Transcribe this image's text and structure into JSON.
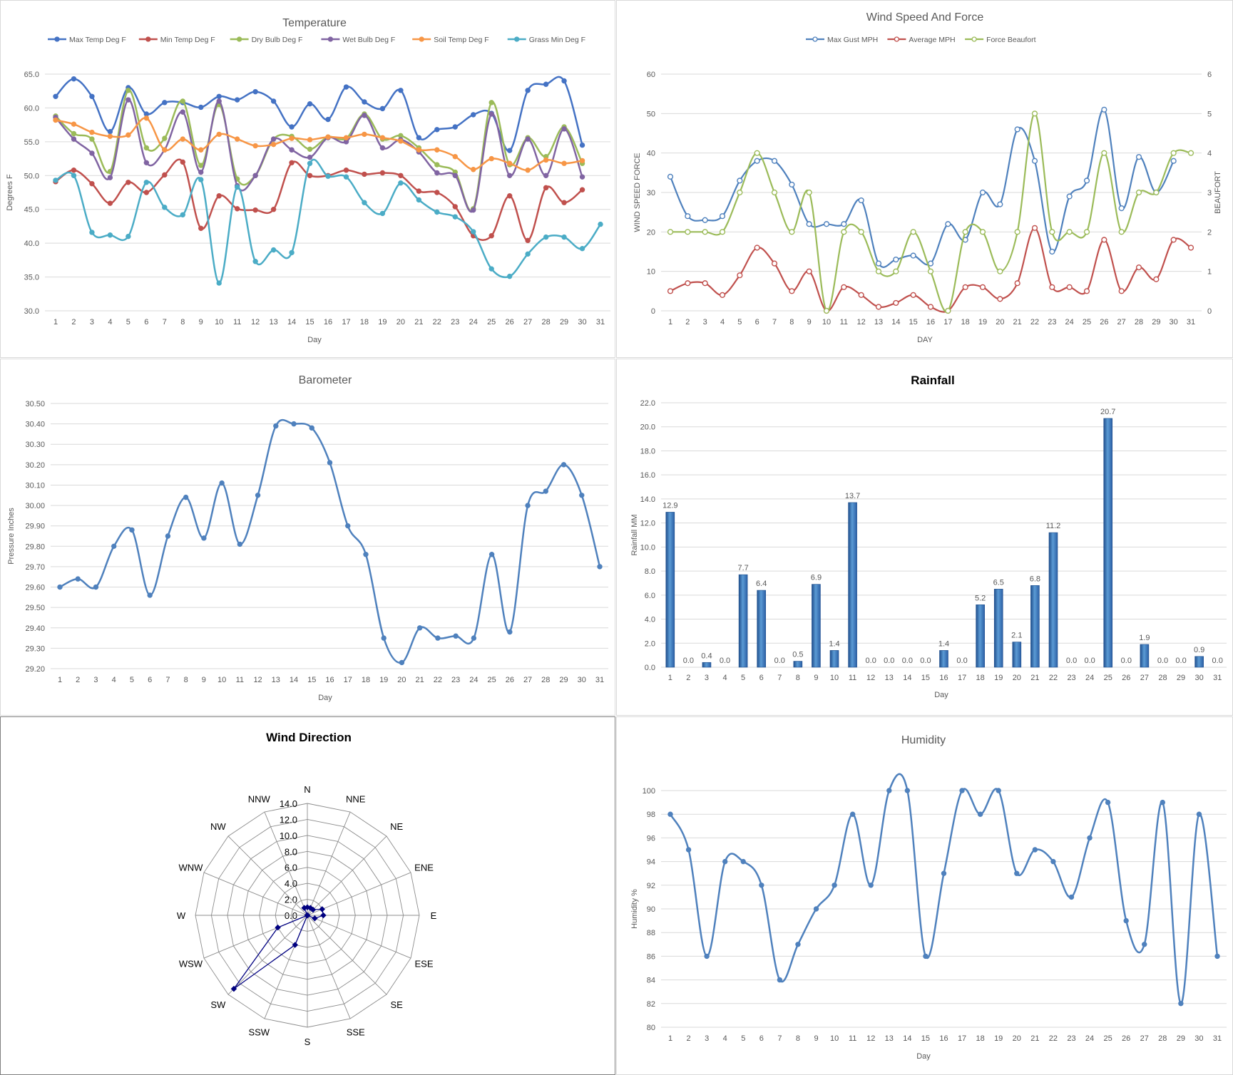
{
  "chart_data": [
    {
      "id": "temperature",
      "type": "line",
      "title": "Temperature",
      "xlabel": "Day",
      "ylabel": "Degrees F",
      "ylim": [
        30,
        65
      ],
      "yticks": [
        "30.0",
        "35.0",
        "40.0",
        "45.0",
        "50.0",
        "55.0",
        "60.0",
        "65.0"
      ],
      "categories": [
        "1",
        "2",
        "3",
        "4",
        "5",
        "6",
        "7",
        "8",
        "9",
        "10",
        "11",
        "12",
        "13",
        "14",
        "15",
        "16",
        "17",
        "18",
        "19",
        "20",
        "21",
        "22",
        "23",
        "24",
        "25",
        "26",
        "27",
        "28",
        "29",
        "30",
        "31"
      ],
      "legend_position": "top",
      "grid": true,
      "series": [
        {
          "name": "Max Temp Deg F",
          "color": "#4472c4",
          "values": [
            61.7,
            64.3,
            61.7,
            56.5,
            63.0,
            59.1,
            60.8,
            60.8,
            60.1,
            61.7,
            61.2,
            62.4,
            61.0,
            57.2,
            60.6,
            58.3,
            63.1,
            60.9,
            59.9,
            62.6,
            55.6,
            56.8,
            57.2,
            59.0,
            59.2,
            53.7,
            62.6,
            63.5,
            64.0,
            54.5,
            null
          ]
        },
        {
          "name": "Min Temp Deg F",
          "color": "#c0504d",
          "values": [
            49.1,
            50.8,
            48.8,
            45.9,
            49.0,
            47.5,
            50.1,
            52.0,
            42.2,
            47.0,
            45.1,
            44.9,
            45.0,
            51.9,
            50.0,
            50.0,
            50.8,
            50.2,
            50.4,
            50.0,
            47.7,
            47.5,
            45.4,
            41.1,
            41.1,
            47.0,
            40.4,
            48.2,
            46.0,
            47.9,
            null
          ]
        },
        {
          "name": "Dry Bulb Deg F",
          "color": "#9bbb59",
          "values": [
            58.8,
            56.2,
            55.4,
            50.6,
            62.6,
            54.1,
            55.5,
            61.0,
            51.5,
            60.5,
            49.5,
            50.0,
            55.4,
            55.8,
            53.9,
            55.7,
            55.5,
            59.1,
            55.4,
            55.9,
            54.1,
            51.6,
            50.5,
            45.1,
            60.8,
            51.6,
            55.6,
            52.8,
            57.2,
            51.8,
            null
          ]
        },
        {
          "name": "Wet Bulb Deg F",
          "color": "#8064a2",
          "values": [
            58.6,
            55.4,
            53.3,
            49.7,
            61.2,
            51.9,
            53.8,
            59.4,
            50.5,
            61.0,
            48.5,
            50.0,
            55.4,
            53.8,
            52.7,
            55.6,
            55.0,
            58.9,
            54.1,
            55.3,
            53.5,
            50.4,
            50.0,
            44.9,
            59.1,
            50.0,
            55.4,
            50.0,
            56.9,
            49.8,
            null
          ]
        },
        {
          "name": "Soil Temp Deg F",
          "color": "#f79646",
          "values": [
            58.2,
            57.6,
            56.4,
            55.8,
            56.0,
            58.5,
            53.8,
            55.4,
            53.8,
            56.1,
            55.4,
            54.4,
            54.6,
            55.5,
            55.3,
            55.7,
            55.6,
            56.1,
            55.6,
            55.1,
            53.8,
            53.8,
            52.8,
            50.9,
            52.5,
            51.8,
            50.8,
            52.3,
            51.8,
            52.2,
            null
          ]
        },
        {
          "name": "Grass Min Deg F",
          "color": "#4bacc6",
          "values": [
            49.3,
            50.0,
            41.6,
            41.2,
            41.0,
            49.0,
            45.3,
            44.2,
            49.4,
            34.1,
            48.3,
            37.3,
            39.0,
            38.6,
            51.8,
            49.9,
            49.8,
            46.0,
            44.4,
            48.9,
            46.4,
            44.6,
            43.9,
            41.7,
            36.2,
            35.1,
            38.4,
            40.9,
            40.9,
            39.2,
            42.8
          ]
        }
      ]
    },
    {
      "id": "wind",
      "type": "line",
      "title": "Wind Speed And Force",
      "xlabel": "DAY",
      "ylabel": "WIND SPEED FORCE",
      "y2label": "BEAUFORT",
      "ylim": [
        0,
        60
      ],
      "y2lim": [
        0,
        6
      ],
      "yticks": [
        "0",
        "10",
        "20",
        "30",
        "40",
        "50",
        "60"
      ],
      "y2ticks": [
        "0",
        "1",
        "2",
        "3",
        "4",
        "5",
        "6"
      ],
      "categories": [
        "1",
        "2",
        "3",
        "4",
        "5",
        "6",
        "7",
        "8",
        "9",
        "10",
        "11",
        "12",
        "13",
        "14",
        "15",
        "16",
        "17",
        "18",
        "19",
        "20",
        "21",
        "22",
        "23",
        "24",
        "25",
        "26",
        "27",
        "28",
        "29",
        "30",
        "31"
      ],
      "legend_position": "top",
      "grid": true,
      "series": [
        {
          "name": "Max Gust MPH",
          "color": "#4f81bd",
          "axis": "left",
          "values": [
            34,
            24,
            23,
            24,
            33,
            38,
            38,
            32,
            22,
            22,
            22,
            28,
            12,
            13,
            14,
            12,
            22,
            18,
            30,
            27,
            46,
            38,
            15,
            29,
            33,
            51,
            26,
            39,
            30,
            38,
            null
          ]
        },
        {
          "name": "Average MPH",
          "color": "#c0504d",
          "axis": "left",
          "values": [
            5,
            7,
            7,
            4,
            9,
            16,
            12,
            5,
            10,
            0,
            6,
            4,
            1,
            2,
            4,
            1,
            0,
            6,
            6,
            3,
            7,
            21,
            6,
            6,
            5,
            18,
            5,
            11,
            8,
            18,
            16
          ]
        },
        {
          "name": "Force Beaufort",
          "color": "#9bbb59",
          "axis": "right",
          "values": [
            2,
            2,
            2,
            2,
            3,
            4,
            3,
            2,
            3,
            0,
            2,
            2,
            1,
            1,
            2,
            1,
            0,
            2,
            2,
            1,
            2,
            5,
            2,
            2,
            2,
            4,
            2,
            3,
            3,
            4,
            4
          ]
        }
      ]
    },
    {
      "id": "barometer",
      "type": "line",
      "title": "Barometer",
      "xlabel": "Day",
      "ylabel": "Pressure Inches",
      "ylim": [
        29.2,
        30.5
      ],
      "yticks": [
        "29.20",
        "29.30",
        "29.40",
        "29.50",
        "29.60",
        "29.70",
        "29.80",
        "29.90",
        "30.00",
        "30.10",
        "30.20",
        "30.30",
        "30.40",
        "30.50"
      ],
      "categories": [
        "1",
        "2",
        "3",
        "4",
        "5",
        "6",
        "7",
        "8",
        "9",
        "10",
        "11",
        "12",
        "13",
        "14",
        "15",
        "16",
        "17",
        "18",
        "19",
        "20",
        "21",
        "22",
        "23",
        "24",
        "25",
        "26",
        "27",
        "28",
        "29",
        "30",
        "31"
      ],
      "grid": true,
      "series": [
        {
          "name": "",
          "color": "#4f81bd",
          "values": [
            29.6,
            29.64,
            29.6,
            29.8,
            29.88,
            29.56,
            29.85,
            30.04,
            29.84,
            30.11,
            29.81,
            30.05,
            30.39,
            30.4,
            30.38,
            30.21,
            29.9,
            29.76,
            29.35,
            29.23,
            29.4,
            29.35,
            29.36,
            29.35,
            29.76,
            29.38,
            30.0,
            30.07,
            30.2,
            30.05,
            29.7
          ]
        }
      ]
    },
    {
      "id": "rainfall",
      "type": "bar",
      "title": "Rainfall",
      "xlabel": "Day",
      "ylabel": "Rainfall MM",
      "ylim": [
        0,
        22
      ],
      "yticks": [
        "0.0",
        "2.0",
        "4.0",
        "6.0",
        "8.0",
        "10.0",
        "12.0",
        "14.0",
        "16.0",
        "18.0",
        "20.0",
        "22.0"
      ],
      "categories": [
        "1",
        "2",
        "3",
        "4",
        "5",
        "6",
        "7",
        "8",
        "9",
        "10",
        "11",
        "12",
        "13",
        "14",
        "15",
        "16",
        "17",
        "18",
        "19",
        "20",
        "21",
        "22",
        "23",
        "24",
        "25",
        "26",
        "27",
        "28",
        "29",
        "30",
        "31"
      ],
      "values": [
        12.9,
        0.0,
        0.4,
        0.0,
        7.7,
        6.4,
        0.0,
        0.5,
        6.9,
        1.4,
        13.7,
        0.0,
        0.0,
        0.0,
        0.0,
        1.4,
        0.0,
        5.2,
        6.5,
        2.1,
        6.8,
        11.2,
        0.0,
        0.0,
        20.7,
        0.0,
        1.9,
        0.0,
        0.0,
        0.9,
        0.0
      ],
      "labels": [
        "12.9",
        "0.0",
        "0.4",
        "0.0",
        "7.7",
        "6.4",
        "0.0",
        "0.5",
        "6.9",
        "1.4",
        "13.7",
        "0.0",
        "0.0",
        "0.0",
        "0.0",
        "1.4",
        "0.0",
        "5.2",
        "6.5",
        "2.1",
        "6.8",
        "11.2",
        "0.0",
        "0.0",
        "20.7",
        "0.0",
        "1.9",
        "0.0",
        "0.0",
        "0.9",
        "0.0"
      ],
      "color": "#3a75c4",
      "grid": true
    },
    {
      "id": "wind_direction",
      "type": "radar",
      "title": "Wind Direction",
      "rlim": [
        0,
        14
      ],
      "rticks": [
        "0.0",
        "2.0",
        "4.0",
        "6.0",
        "8.0",
        "10.0",
        "12.0",
        "14.0"
      ],
      "directions": [
        "N",
        "NNE",
        "NE",
        "ENE",
        "E",
        "ESE",
        "SE",
        "SSE",
        "S",
        "SSW",
        "SW",
        "WSW",
        "W",
        "WNW",
        "NW",
        "NNW"
      ],
      "values": [
        1,
        1,
        1,
        2,
        2,
        1,
        0,
        0,
        0,
        4,
        13,
        4,
        0,
        0,
        0,
        1
      ],
      "color": "#000080"
    },
    {
      "id": "humidity",
      "type": "line",
      "title": "Humidity",
      "xlabel": "Day",
      "ylabel": "Humidity %",
      "ylim": [
        80,
        100
      ],
      "yticks": [
        "80",
        "82",
        "84",
        "86",
        "88",
        "90",
        "92",
        "94",
        "96",
        "98",
        "100"
      ],
      "categories": [
        "1",
        "2",
        "3",
        "4",
        "5",
        "6",
        "7",
        "8",
        "9",
        "10",
        "11",
        "12",
        "13",
        "14",
        "15",
        "16",
        "17",
        "18",
        "19",
        "20",
        "21",
        "22",
        "23",
        "24",
        "25",
        "26",
        "27",
        "28",
        "29",
        "30",
        "31"
      ],
      "grid": true,
      "series": [
        {
          "name": "",
          "color": "#4f81bd",
          "values": [
            98,
            95,
            86,
            94,
            94,
            92,
            84,
            87,
            90,
            92,
            98,
            92,
            100,
            100,
            86,
            93,
            100,
            98,
            100,
            93,
            95,
            94,
            91,
            96,
            99,
            89,
            87,
            99,
            82,
            98,
            86
          ]
        }
      ]
    }
  ]
}
